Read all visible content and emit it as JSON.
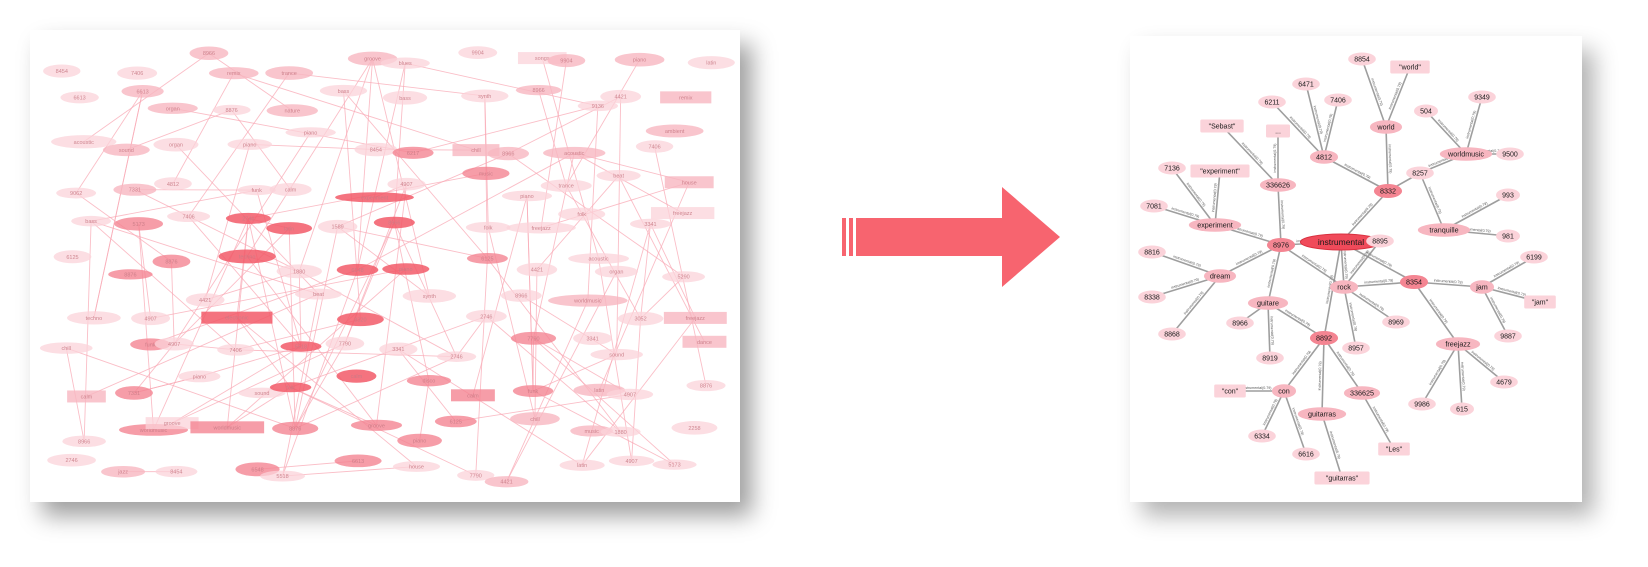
{
  "colors": {
    "node_dark": "#f25a68",
    "node_mid": "#f48592",
    "node_light": "#f7b6c0",
    "node_pale": "#fbd3da",
    "edge_left": "#f9a9b5",
    "edge_right": "#8e8e8e",
    "arrow": "#f7646f",
    "text": "#1a1a1a"
  },
  "left_graph": {
    "words": [
      "ambient",
      "drum",
      "electro",
      "songs",
      "guitare",
      "vocal",
      "piano",
      "funk",
      "latin",
      "acoustic",
      "soul",
      "techno",
      "dance",
      "worldmusic",
      "jazz",
      "calm",
      "relax",
      "chill",
      "blues",
      "synth",
      "pop",
      "house",
      "groove",
      "beat",
      "freejazz",
      "electronic",
      "folk",
      "experiment",
      "organ",
      "nature",
      "sound",
      "music",
      "disco",
      "bass",
      "lofi",
      "remix",
      "trance",
      "melodic"
    ],
    "numbers": [
      "8454",
      "6217",
      "5290",
      "9136",
      "4812",
      "7406",
      "8966",
      "5173",
      "3341",
      "2258",
      "8876",
      "6125",
      "7790",
      "4421",
      "9904",
      "3052",
      "6613",
      "1589",
      "8320",
      "2746",
      "5518",
      "9062",
      "7331",
      "4907",
      "6548",
      "1880"
    ]
  },
  "right_graph": {
    "edge_label": "instrumental(0.79)",
    "nodes": [
      {
        "id": "instrumental",
        "label": "instrumental",
        "style": "center"
      },
      {
        "id": "8976",
        "label": "8976",
        "style": "mid"
      },
      {
        "id": "8332",
        "label": "8332",
        "style": "mid"
      },
      {
        "id": "8354",
        "label": "8354",
        "style": "mid"
      },
      {
        "id": "8892",
        "label": "8892",
        "style": "mid"
      },
      {
        "id": "rock",
        "label": "rock",
        "style": "light"
      },
      {
        "id": "world",
        "label": "world",
        "style": "light"
      },
      {
        "id": "4812",
        "label": "4812",
        "style": "light"
      },
      {
        "id": "8257",
        "label": "8257",
        "style": "pale"
      },
      {
        "id": "336626",
        "label": "336626",
        "style": "light"
      },
      {
        "id": "336625",
        "label": "336625",
        "style": "light"
      },
      {
        "id": "experiment",
        "label": "experiment",
        "style": "light"
      },
      {
        "id": "dream",
        "label": "dream",
        "style": "light"
      },
      {
        "id": "guitare",
        "label": "guitare",
        "style": "light"
      },
      {
        "id": "jam",
        "label": "jam",
        "style": "light"
      },
      {
        "id": "tranquille",
        "label": "tranquille",
        "style": "light"
      },
      {
        "id": "freejazz",
        "label": "freejazz",
        "style": "light"
      },
      {
        "id": "worldmusic",
        "label": "worldmusic",
        "style": "light"
      },
      {
        "id": "con",
        "label": "con",
        "style": "light"
      },
      {
        "id": "guitarras",
        "label": "guitarras",
        "style": "light"
      },
      {
        "id": "8854",
        "label": "8854",
        "style": "pale"
      },
      {
        "id": "q_world",
        "label": "\"world\"",
        "style": "rect"
      },
      {
        "id": "6471",
        "label": "6471",
        "style": "pale"
      },
      {
        "id": "7406",
        "label": "7406",
        "style": "pale"
      },
      {
        "id": "6211",
        "label": "6211",
        "style": "pale"
      },
      {
        "id": "dots",
        "label": "...",
        "style": "rect"
      },
      {
        "id": "q_sebast",
        "label": "\"Sebast\"",
        "style": "rect"
      },
      {
        "id": "504",
        "label": "504",
        "style": "pale"
      },
      {
        "id": "9349",
        "label": "9349",
        "style": "pale"
      },
      {
        "id": "9500",
        "label": "9500",
        "style": "pale"
      },
      {
        "id": "7136",
        "label": "7136",
        "style": "pale"
      },
      {
        "id": "q_experiment",
        "label": "\"experiment\"",
        "style": "rect"
      },
      {
        "id": "7081",
        "label": "7081",
        "style": "pale"
      },
      {
        "id": "993",
        "label": "993",
        "style": "pale"
      },
      {
        "id": "981",
        "label": "981",
        "style": "pale"
      },
      {
        "id": "8895",
        "label": "8895",
        "style": "pale"
      },
      {
        "id": "8816",
        "label": "8816",
        "style": "pale"
      },
      {
        "id": "6199",
        "label": "6199",
        "style": "pale"
      },
      {
        "id": "8338",
        "label": "8338",
        "style": "pale"
      },
      {
        "id": "q_jam",
        "label": "\"jam\"",
        "style": "rect"
      },
      {
        "id": "8966",
        "label": "8966",
        "style": "pale"
      },
      {
        "id": "8969",
        "label": "8969",
        "style": "pale"
      },
      {
        "id": "8868",
        "label": "8868",
        "style": "pale"
      },
      {
        "id": "9887",
        "label": "9887",
        "style": "pale"
      },
      {
        "id": "8919",
        "label": "8919",
        "style": "pale"
      },
      {
        "id": "8957",
        "label": "8957",
        "style": "pale"
      },
      {
        "id": "4679",
        "label": "4679",
        "style": "pale"
      },
      {
        "id": "9986",
        "label": "9986",
        "style": "pale"
      },
      {
        "id": "615",
        "label": "615",
        "style": "pale"
      },
      {
        "id": "q_con",
        "label": "\"con\"",
        "style": "rect"
      },
      {
        "id": "6334",
        "label": "6334",
        "style": "pale"
      },
      {
        "id": "6616",
        "label": "6616",
        "style": "pale"
      },
      {
        "id": "q_les",
        "label": "\"Les\"",
        "style": "rect"
      },
      {
        "id": "q_guitarras",
        "label": "\"guitarras\"",
        "style": "rect"
      }
    ],
    "edges": [
      [
        "8976",
        "instrumental"
      ],
      [
        "8332",
        "instrumental"
      ],
      [
        "8354",
        "instrumental"
      ],
      [
        "8892",
        "instrumental"
      ],
      [
        "rock",
        "instrumental"
      ],
      [
        "8332",
        "world"
      ],
      [
        "8332",
        "4812"
      ],
      [
        "8332",
        "8257"
      ],
      [
        "world",
        "8854"
      ],
      [
        "world",
        "q_world"
      ],
      [
        "4812",
        "6471"
      ],
      [
        "4812",
        "7406"
      ],
      [
        "4812",
        "6211"
      ],
      [
        "8257",
        "worldmusic"
      ],
      [
        "8257",
        "tranquille"
      ],
      [
        "worldmusic",
        "504"
      ],
      [
        "worldmusic",
        "9349"
      ],
      [
        "worldmusic",
        "9500"
      ],
      [
        "tranquille",
        "993"
      ],
      [
        "tranquille",
        "981"
      ],
      [
        "8976",
        "336626"
      ],
      [
        "336626",
        "dots"
      ],
      [
        "336626",
        "q_sebast"
      ],
      [
        "8976",
        "experiment"
      ],
      [
        "experiment",
        "7136"
      ],
      [
        "experiment",
        "q_experiment"
      ],
      [
        "experiment",
        "7081"
      ],
      [
        "8976",
        "dream"
      ],
      [
        "dream",
        "8816"
      ],
      [
        "dream",
        "8338"
      ],
      [
        "dream",
        "8868"
      ],
      [
        "8976",
        "guitare"
      ],
      [
        "8976",
        "rock"
      ],
      [
        "guitare",
        "8966"
      ],
      [
        "guitare",
        "8919"
      ],
      [
        "8354",
        "rock"
      ],
      [
        "8354",
        "jam"
      ],
      [
        "8354",
        "freejazz"
      ],
      [
        "rock",
        "8895"
      ],
      [
        "rock",
        "8969"
      ],
      [
        "rock",
        "8957"
      ],
      [
        "jam",
        "6199"
      ],
      [
        "jam",
        "q_jam"
      ],
      [
        "jam",
        "9887"
      ],
      [
        "freejazz",
        "4679"
      ],
      [
        "freejazz",
        "9986"
      ],
      [
        "freejazz",
        "615"
      ],
      [
        "8892",
        "con"
      ],
      [
        "8892",
        "guitarras"
      ],
      [
        "8892",
        "336625"
      ],
      [
        "8892",
        "guitare"
      ],
      [
        "con",
        "q_con"
      ],
      [
        "con",
        "6334"
      ],
      [
        "con",
        "6616"
      ],
      [
        "336625",
        "q_les"
      ],
      [
        "guitarras",
        "q_guitarras"
      ]
    ]
  }
}
